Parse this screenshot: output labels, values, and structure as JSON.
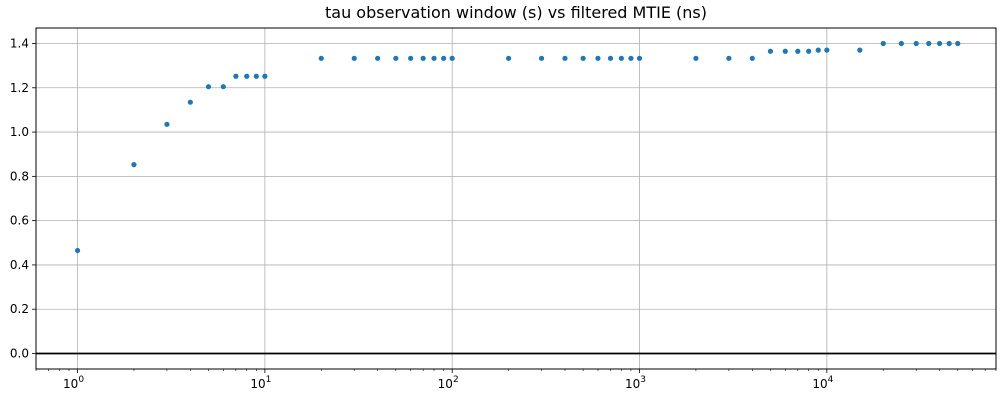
{
  "chart_data": {
    "type": "scatter",
    "title": "tau observation window (s) vs filtered MTIE (ns)",
    "xlabel": "",
    "ylabel": "",
    "x_scale": "log",
    "xlim": [
      0.6,
      80000
    ],
    "ylim": [
      -0.07,
      1.47
    ],
    "grid": true,
    "point_color": "#1f77b4",
    "zero_line_color": "#000000",
    "x_ticks": [
      {
        "value": 1,
        "base": "10",
        "exp": "0"
      },
      {
        "value": 10,
        "base": "10",
        "exp": "1"
      },
      {
        "value": 100,
        "base": "10",
        "exp": "2"
      },
      {
        "value": 1000,
        "base": "10",
        "exp": "3"
      },
      {
        "value": 10000,
        "base": "10",
        "exp": "4"
      }
    ],
    "y_ticks": [
      "0.0",
      "0.2",
      "0.4",
      "0.6",
      "0.8",
      "1.0",
      "1.2",
      "1.4"
    ],
    "x": [
      1,
      2,
      3,
      4,
      5,
      6,
      7,
      8,
      9,
      10,
      20,
      30,
      40,
      50,
      60,
      70,
      80,
      90,
      100,
      200,
      300,
      400,
      500,
      600,
      700,
      800,
      900,
      1000,
      2000,
      3000,
      4000,
      5000,
      6000,
      7000,
      8000,
      9000,
      10000,
      15000,
      20000,
      25000,
      30000,
      35000,
      40000,
      45000,
      50000
    ],
    "y": [
      0.465,
      0.853,
      1.035,
      1.135,
      1.205,
      1.205,
      1.252,
      1.252,
      1.252,
      1.252,
      1.333,
      1.333,
      1.333,
      1.333,
      1.333,
      1.333,
      1.333,
      1.333,
      1.333,
      1.333,
      1.333,
      1.333,
      1.333,
      1.333,
      1.333,
      1.333,
      1.333,
      1.333,
      1.333,
      1.333,
      1.333,
      1.365,
      1.365,
      1.365,
      1.365,
      1.37,
      1.37,
      1.37,
      1.4,
      1.4,
      1.4,
      1.4,
      1.4,
      1.4,
      1.4
    ]
  }
}
